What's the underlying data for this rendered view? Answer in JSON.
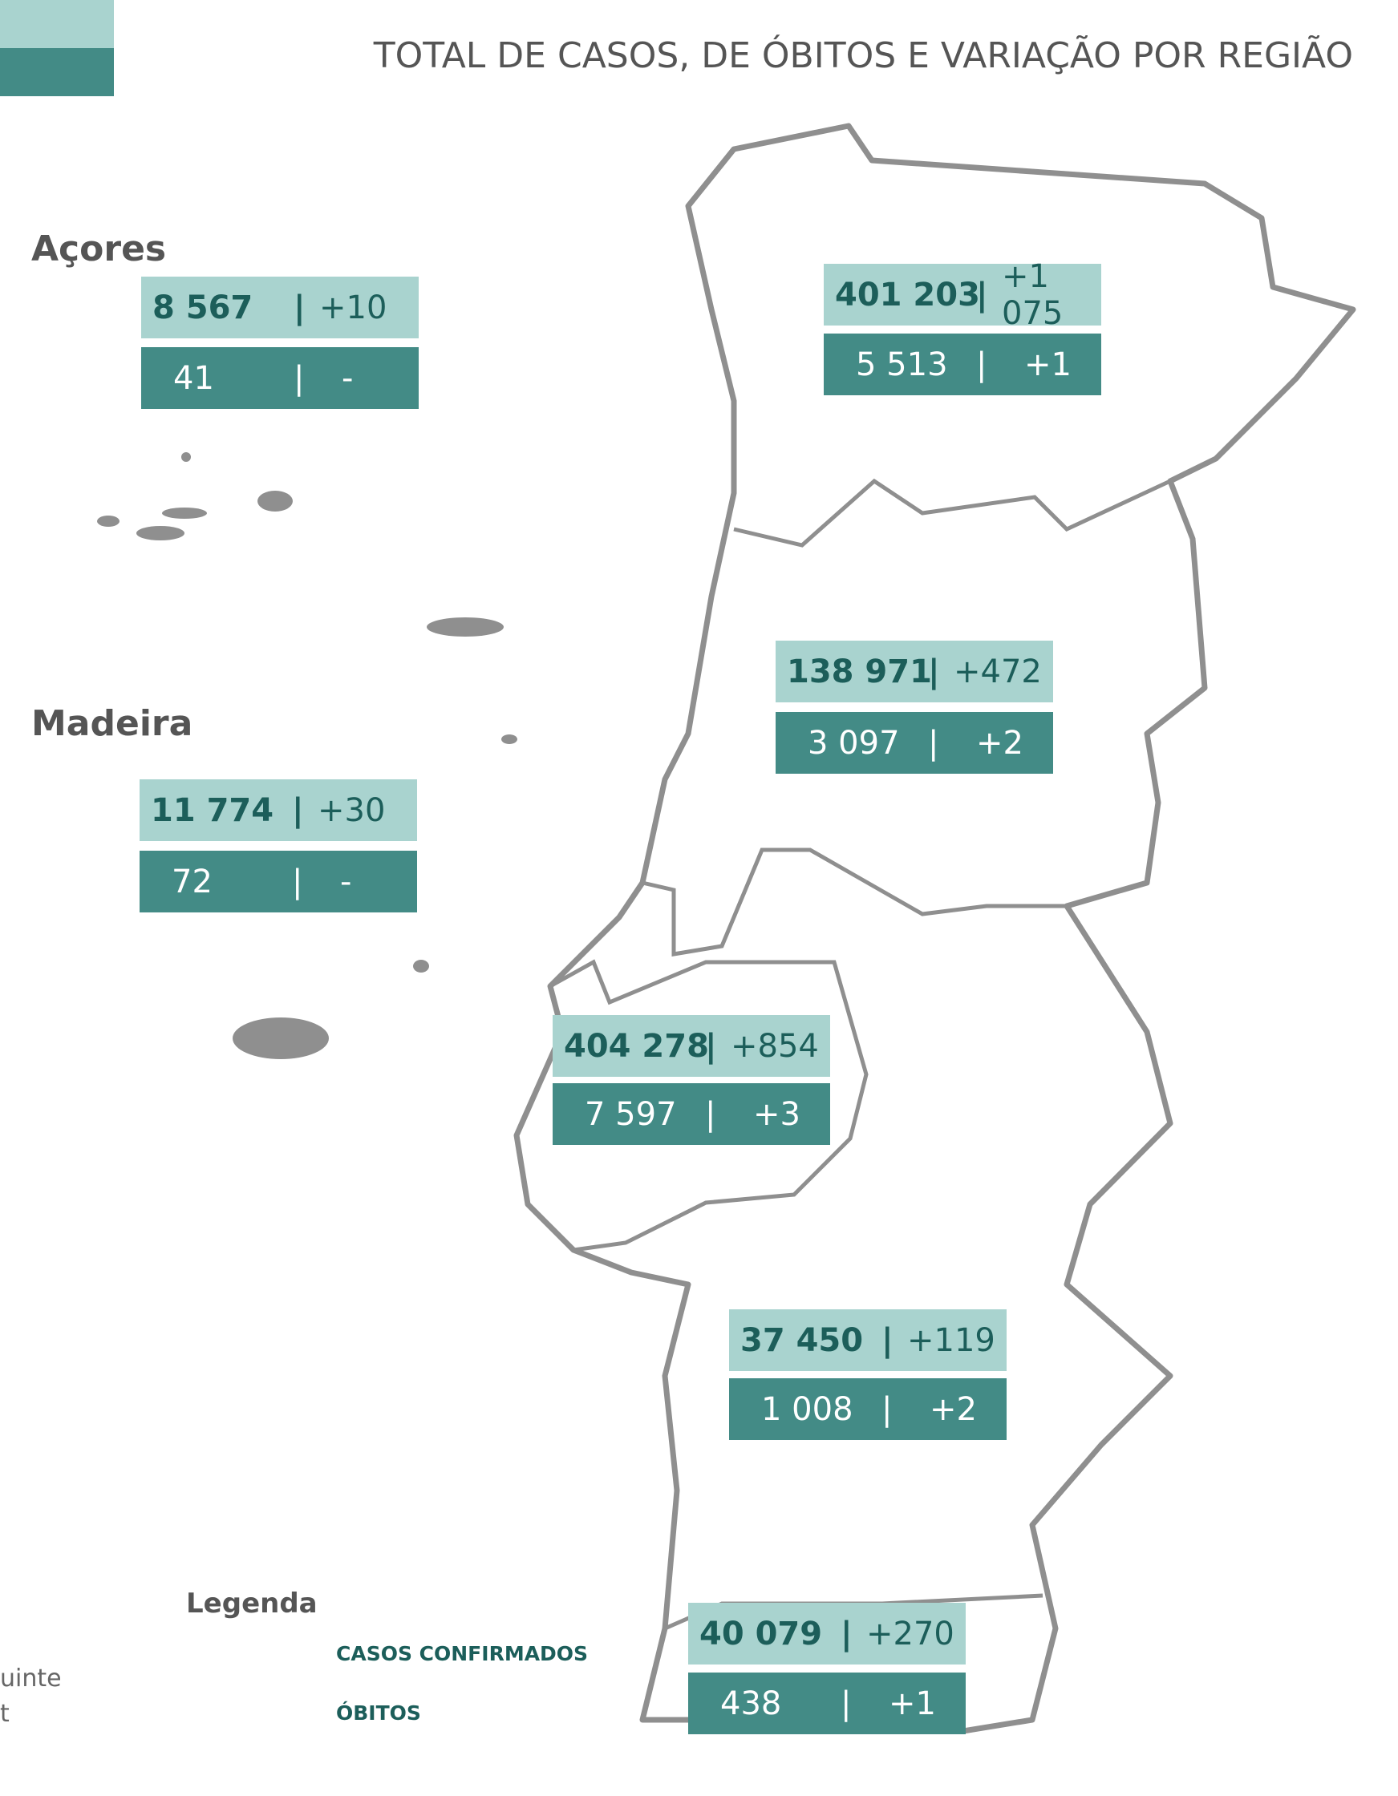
{
  "title": "TOTAL DE CASOS, DE ÓBITOS E VARIAÇÃO POR REGIÃO",
  "separator": "|",
  "regions": [
    {
      "name": "Açores",
      "cases": "8 567",
      "cases_change": "+10",
      "deaths": "41",
      "deaths_change": "-"
    },
    {
      "name": "Madeira",
      "cases": "11 774",
      "cases_change": "+30",
      "deaths": "72",
      "deaths_change": "-"
    },
    {
      "cases": "401 203",
      "cases_change": "+1 075",
      "deaths": "5 513",
      "deaths_change": "+1"
    },
    {
      "cases": "138 971",
      "cases_change": "+472",
      "deaths": "3 097",
      "deaths_change": "+2"
    },
    {
      "cases": "404 278",
      "cases_change": "+854",
      "deaths": "7 597",
      "deaths_change": "+3"
    },
    {
      "cases": "37 450",
      "cases_change": "+119",
      "deaths": "1 008",
      "deaths_change": "+2"
    },
    {
      "cases": "40 079",
      "cases_change": "+270",
      "deaths": "438",
      "deaths_change": "+1"
    }
  ],
  "legend": {
    "title": "Legenda",
    "items": [
      "CASOS CONFIRMADOS",
      "ÓBITOS"
    ]
  },
  "fragments": [
    "uinte",
    "t"
  ]
}
